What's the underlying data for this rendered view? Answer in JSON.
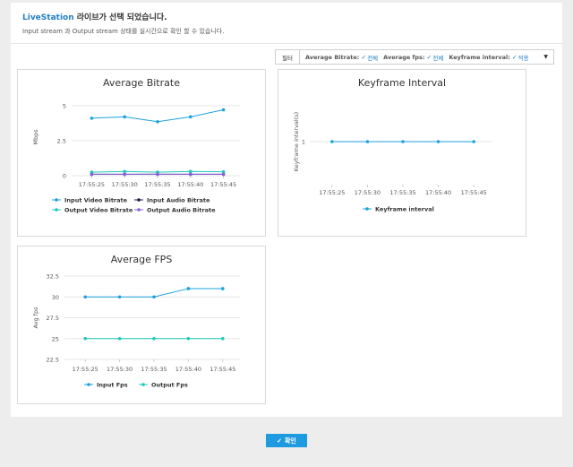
{
  "header": {
    "brand": "LiveStation",
    "title_suffix": "라이브가 선택 되었습니다.",
    "description": "Input stream 과 Output stream 상태를 실시간으로 확인 할 수 있습니다."
  },
  "filterbar": {
    "filter_label": "필터",
    "items": [
      {
        "label": "Average Bitrate:",
        "value": "전체"
      },
      {
        "label": "Average fps:",
        "value": "전체"
      },
      {
        "label": "Keyframe interval:",
        "value": "적용"
      }
    ],
    "check_icon": "check-icon",
    "caret_icon": "caret-down-icon"
  },
  "colors": {
    "accent": "#1f7fc8",
    "series_blue": "#1da1dc",
    "series_teal": "#1cc8b9",
    "series_dark": "#1c1c4e",
    "series_purple": "#8a5fdc"
  },
  "chart_data": [
    {
      "type": "line",
      "title": "Average Bitrate",
      "ylabel": "Mbps",
      "xlabel": "",
      "x": [
        "17:55:25",
        "17:55:30",
        "17:55:35",
        "17:55:40",
        "17:55:45"
      ],
      "yticks": [
        "0",
        "2.5",
        "5"
      ],
      "ylim": [
        0,
        5.5
      ],
      "grid": true,
      "legend_position": "bottom",
      "series": [
        {
          "name": "Input Video Bitrate",
          "color": "#1da1dc",
          "values": [
            4.1,
            4.2,
            3.85,
            4.2,
            4.7
          ]
        },
        {
          "name": "Input Audio Bitrate",
          "color": "#1c1c4e",
          "values": [
            0.1,
            0.1,
            0.1,
            0.1,
            0.1
          ]
        },
        {
          "name": "Output Video Bitrate",
          "color": "#1cc8b9",
          "values": [
            0.25,
            0.3,
            0.25,
            0.3,
            0.28
          ]
        },
        {
          "name": "Output Audio Bitrate",
          "color": "#8a5fdc",
          "values": [
            0.1,
            0.1,
            0.1,
            0.1,
            0.1
          ]
        }
      ]
    },
    {
      "type": "line",
      "title": "Keyframe Interval",
      "ylabel": "Keyframe interval(s)",
      "xlabel": "",
      "x": [
        "17:55:25",
        "17:55:30",
        "17:55:35",
        "17:55:40",
        "17:55:45"
      ],
      "yticks": [
        "1"
      ],
      "ylim": [
        0,
        2
      ],
      "grid": true,
      "legend_position": "bottom",
      "series": [
        {
          "name": "Keyframe interval",
          "color": "#1da1dc",
          "values": [
            1,
            1,
            1,
            1,
            1
          ]
        }
      ]
    },
    {
      "type": "line",
      "title": "Average FPS",
      "ylabel": "Avg fps",
      "xlabel": "",
      "x": [
        "17:55:25",
        "17:55:30",
        "17:55:35",
        "17:55:40",
        "17:55:45"
      ],
      "yticks": [
        "22.5",
        "25",
        "27.5",
        "30",
        "32.5"
      ],
      "ylim": [
        22.5,
        32.5
      ],
      "grid": true,
      "legend_position": "bottom",
      "series": [
        {
          "name": "Input Fps",
          "color": "#1da1dc",
          "values": [
            30,
            30,
            30,
            31,
            31
          ]
        },
        {
          "name": "Output Fps",
          "color": "#1cc8b9",
          "values": [
            25,
            25,
            25,
            25,
            25
          ]
        }
      ]
    }
  ],
  "footer": {
    "confirm_label": "확인",
    "confirm_icon": "check-icon"
  }
}
